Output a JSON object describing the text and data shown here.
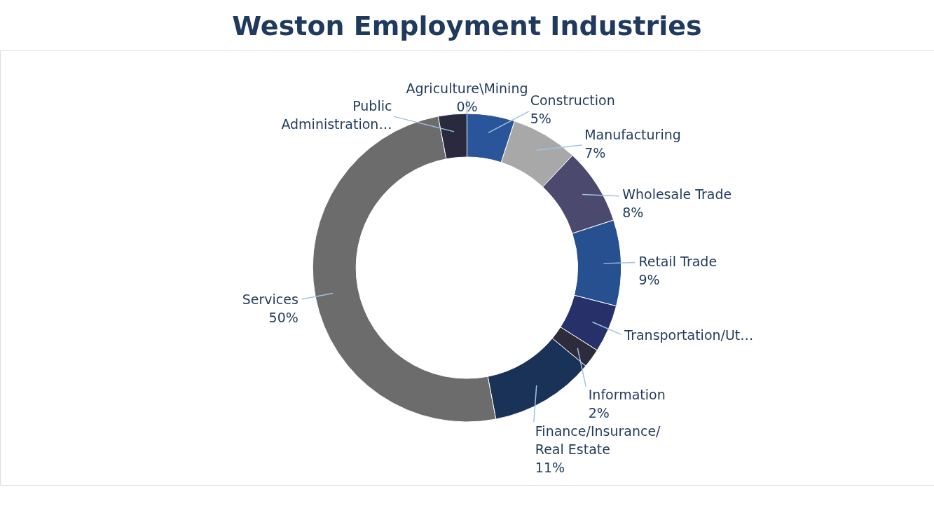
{
  "chart_data": {
    "type": "donut",
    "title": "Weston Employment Industries",
    "categories": [
      "Agriculture\\Mining",
      "Construction",
      "Manufacturing",
      "Wholesale Trade",
      "Retail Trade",
      "Transportation/Ut…",
      "Information",
      "Finance/Insurance/Real Estate",
      "Services",
      "Public Administration…"
    ],
    "values": [
      0,
      5,
      7,
      8,
      9,
      5,
      2,
      11,
      50,
      3
    ],
    "value_labels": [
      "0%",
      "5%",
      "7%",
      "8%",
      "9%",
      null,
      "2%",
      "11%",
      "50%",
      null
    ],
    "colors": [
      "#3a3a5c",
      "#2a559a",
      "#a8a8a8",
      "#4b4a6e",
      "#26508f",
      "#28306a",
      "#2c2c3c",
      "#1b3258",
      "#6c6c6c",
      "#2a2a3e"
    ]
  }
}
